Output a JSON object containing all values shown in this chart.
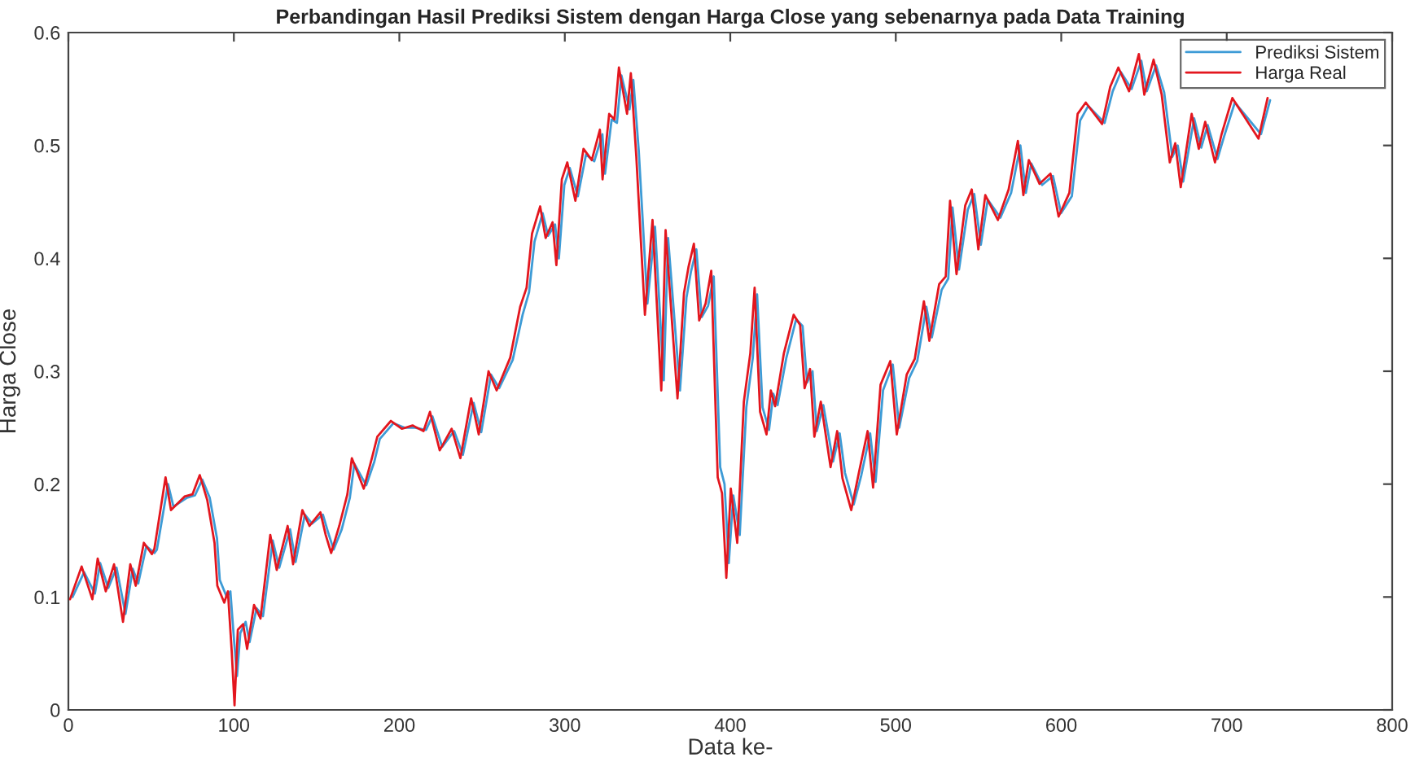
{
  "chart_data": {
    "type": "line",
    "title": "Perbandingan Hasil Prediksi Sistem dengan Harga Close yang sebenarnya pada Data Training",
    "xlabel": "Data ke-",
    "ylabel": "Harga Close",
    "xlim": [
      0,
      800
    ],
    "xticks": [
      0,
      100,
      200,
      300,
      400,
      500,
      600,
      700,
      800
    ],
    "ylim": [
      0,
      0.6
    ],
    "yticks": [
      0,
      0.1,
      0.2,
      0.3,
      0.4,
      0.5,
      0.6
    ],
    "grid": false,
    "legend": "top right",
    "line_style": "solid",
    "marker": "none",
    "series": [
      {
        "name": "Prediksi Sistem",
        "color": "#3d9bd6",
        "x": [
          2.5,
          9.5,
          16,
          19.2,
          24.1,
          29.1,
          34.5,
          38.9,
          42.2,
          47.1,
          52,
          53.5,
          60.2,
          63.5,
          71.7,
          76.5,
          80.9,
          85.4,
          89.8,
          91.5,
          95.7,
          97.9,
          100.2,
          101.9,
          103.9,
          107.1,
          109.5,
          113.7,
          117.6,
          123.5,
          127.4,
          134,
          137.3,
          142.9,
          147.2,
          153.8,
          157,
          160.3,
          165.2,
          170.1,
          172.8,
          180,
          184.9,
          188.2,
          196.4,
          203,
          209.5,
          216.1,
          220,
          225.9,
          233.1,
          238.4,
          244.9,
          249.5,
          255.4,
          260.3,
          268.5,
          274.5,
          278.4,
          281.7,
          286.6,
          289.9,
          294.1,
          296.4,
          299.7,
          303,
          307.9,
          312.8,
          317.8,
          322.7,
          324.3,
          328.3,
          331.5,
          334.2,
          339.1,
          341.4,
          344.7,
          349.9,
          354.5,
          359.8,
          362.4,
          366.4,
          369.6,
          373.5,
          376.2,
          379.5,
          382.7,
          386.6,
          390,
          393.9,
          396.5,
          399.1,
          401.8,
          405.7,
          409.7,
          413.6,
          416.2,
          419.5,
          423.4,
          426,
          428.6,
          433.9,
          439.8,
          443.7,
          446.4,
          449.7,
          452.3,
          456.2,
          462.1,
          466.1,
          469.3,
          474.6,
          479.2,
          484.5,
          487.8,
          492.3,
          498.2,
          502.1,
          508.1,
          513,
          518.5,
          521.8,
          527.7,
          531.7,
          534.3,
          538.2,
          543.5,
          547.4,
          551.4,
          555.6,
          563.2,
          569.7,
          575.3,
          578.6,
          581.9,
          588.4,
          595,
          599.9,
          606.4,
          611.4,
          616.3,
          626.2,
          631.1,
          636,
          642.5,
          648.4,
          651.7,
          657.3,
          662.2,
          667.1,
          670.4,
          673.7,
          680.3,
          684.6,
          688.5,
          694.4,
          698.4,
          704.9,
          720.7,
          726.2
        ],
        "values": [
          0.1,
          0.122,
          0.103,
          0.13,
          0.108,
          0.126,
          0.085,
          0.125,
          0.112,
          0.145,
          0.139,
          0.142,
          0.2,
          0.18,
          0.188,
          0.19,
          0.204,
          0.188,
          0.152,
          0.115,
          0.1,
          0.105,
          0.06,
          0.03,
          0.068,
          0.078,
          0.06,
          0.09,
          0.083,
          0.15,
          0.126,
          0.16,
          0.131,
          0.173,
          0.165,
          0.173,
          0.157,
          0.142,
          0.16,
          0.188,
          0.218,
          0.199,
          0.22,
          0.24,
          0.254,
          0.25,
          0.25,
          0.248,
          0.26,
          0.233,
          0.247,
          0.226,
          0.272,
          0.246,
          0.297,
          0.285,
          0.31,
          0.35,
          0.37,
          0.415,
          0.44,
          0.42,
          0.43,
          0.4,
          0.465,
          0.48,
          0.455,
          0.492,
          0.486,
          0.51,
          0.475,
          0.523,
          0.52,
          0.562,
          0.532,
          0.558,
          0.495,
          0.36,
          0.428,
          0.292,
          0.418,
          0.343,
          0.283,
          0.365,
          0.388,
          0.408,
          0.348,
          0.358,
          0.384,
          0.215,
          0.2,
          0.13,
          0.19,
          0.155,
          0.268,
          0.312,
          0.368,
          0.268,
          0.248,
          0.28,
          0.27,
          0.312,
          0.346,
          0.34,
          0.29,
          0.3,
          0.247,
          0.27,
          0.22,
          0.245,
          0.21,
          0.182,
          0.208,
          0.245,
          0.202,
          0.283,
          0.306,
          0.25,
          0.294,
          0.309,
          0.357,
          0.33,
          0.372,
          0.382,
          0.445,
          0.39,
          0.443,
          0.457,
          0.412,
          0.452,
          0.436,
          0.458,
          0.5,
          0.458,
          0.484,
          0.465,
          0.473,
          0.44,
          0.455,
          0.522,
          0.535,
          0.52,
          0.548,
          0.565,
          0.55,
          0.575,
          0.548,
          0.571,
          0.547,
          0.49,
          0.5,
          0.468,
          0.524,
          0.498,
          0.518,
          0.488,
          0.508,
          0.538,
          0.51,
          0.54
        ]
      },
      {
        "name": "Harga Real",
        "color": "#e3161e",
        "x": [
          1,
          8,
          14.5,
          17.7,
          22.6,
          27.6,
          33,
          37.4,
          40.7,
          45.6,
          50.5,
          52,
          58.7,
          62,
          70.2,
          75,
          79.4,
          83.9,
          88.3,
          90,
          94.2,
          96.4,
          98.7,
          100.4,
          102.4,
          105.6,
          108,
          112.2,
          116.1,
          122,
          125.9,
          132.5,
          135.8,
          141.4,
          145.7,
          152.3,
          155.5,
          158.8,
          163.7,
          168.6,
          171.3,
          178.5,
          183.4,
          186.7,
          194.9,
          201.5,
          208,
          214.6,
          218.5,
          224.4,
          231.6,
          236.9,
          243.4,
          248,
          253.9,
          258.8,
          267,
          273,
          276.9,
          280.2,
          285.1,
          288.4,
          292.6,
          294.9,
          298.2,
          301.5,
          306.4,
          311.3,
          316.3,
          321.2,
          322.8,
          326.8,
          330,
          332.7,
          337.6,
          339.9,
          343.2,
          348.4,
          353,
          358.3,
          360.9,
          364.9,
          368.1,
          372,
          374.7,
          378,
          381.2,
          385.1,
          388.5,
          392.4,
          395,
          397.6,
          400.3,
          404.2,
          408.2,
          412.1,
          414.7,
          418,
          421.9,
          424.5,
          427.1,
          432.4,
          438.3,
          442.2,
          444.9,
          448.2,
          450.8,
          454.7,
          460.6,
          464.6,
          467.8,
          473.1,
          477.7,
          483,
          486.3,
          490.8,
          496.7,
          500.6,
          506.6,
          511.5,
          517,
          520.3,
          526.2,
          530.2,
          532.8,
          536.7,
          542,
          545.9,
          549.9,
          554.1,
          561.7,
          568.2,
          573.8,
          577.1,
          580.4,
          586.9,
          593.5,
          598.4,
          604.9,
          609.9,
          614.8,
          624.7,
          629.6,
          634.5,
          641,
          646.9,
          650.2,
          655.8,
          660.7,
          665.6,
          668.9,
          672.2,
          678.8,
          683.1,
          687,
          692.9,
          696.9,
          703.4,
          719.2,
          724.7
        ],
        "values": [
          0.098,
          0.127,
          0.098,
          0.134,
          0.105,
          0.129,
          0.078,
          0.129,
          0.11,
          0.148,
          0.138,
          0.143,
          0.206,
          0.177,
          0.189,
          0.191,
          0.208,
          0.186,
          0.148,
          0.11,
          0.095,
          0.105,
          0.052,
          0.004,
          0.071,
          0.076,
          0.054,
          0.093,
          0.081,
          0.155,
          0.124,
          0.163,
          0.129,
          0.177,
          0.163,
          0.175,
          0.155,
          0.139,
          0.163,
          0.191,
          0.223,
          0.196,
          0.223,
          0.242,
          0.256,
          0.249,
          0.252,
          0.247,
          0.264,
          0.23,
          0.249,
          0.223,
          0.276,
          0.244,
          0.3,
          0.283,
          0.312,
          0.357,
          0.374,
          0.422,
          0.446,
          0.418,
          0.432,
          0.394,
          0.47,
          0.485,
          0.451,
          0.497,
          0.487,
          0.514,
          0.47,
          0.528,
          0.523,
          0.569,
          0.528,
          0.564,
          0.49,
          0.35,
          0.434,
          0.283,
          0.425,
          0.341,
          0.276,
          0.369,
          0.392,
          0.413,
          0.345,
          0.36,
          0.389,
          0.206,
          0.192,
          0.117,
          0.196,
          0.148,
          0.273,
          0.316,
          0.374,
          0.264,
          0.244,
          0.283,
          0.269,
          0.316,
          0.35,
          0.341,
          0.285,
          0.302,
          0.242,
          0.273,
          0.215,
          0.247,
          0.205,
          0.177,
          0.21,
          0.247,
          0.197,
          0.288,
          0.309,
          0.244,
          0.297,
          0.311,
          0.362,
          0.327,
          0.377,
          0.384,
          0.451,
          0.386,
          0.447,
          0.461,
          0.408,
          0.456,
          0.434,
          0.461,
          0.504,
          0.456,
          0.487,
          0.466,
          0.475,
          0.437,
          0.458,
          0.528,
          0.538,
          0.519,
          0.552,
          0.569,
          0.548,
          0.581,
          0.545,
          0.576,
          0.545,
          0.485,
          0.502,
          0.463,
          0.528,
          0.497,
          0.521,
          0.485,
          0.51,
          0.542,
          0.506,
          0.542
        ]
      }
    ]
  }
}
